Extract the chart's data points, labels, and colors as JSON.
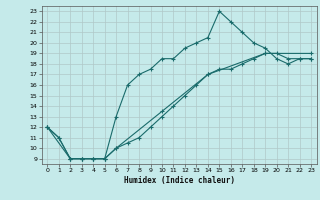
{
  "xlabel": "Humidex (Indice chaleur)",
  "xlim": [
    -0.5,
    23.5
  ],
  "ylim": [
    8.5,
    23.5
  ],
  "xticks": [
    0,
    1,
    2,
    3,
    4,
    5,
    6,
    7,
    8,
    9,
    10,
    11,
    12,
    13,
    14,
    15,
    16,
    17,
    18,
    19,
    20,
    21,
    22,
    23
  ],
  "yticks": [
    9,
    10,
    11,
    12,
    13,
    14,
    15,
    16,
    17,
    18,
    19,
    20,
    21,
    22,
    23
  ],
  "bg_color": "#c5eaea",
  "grid_color": "#b0c8c8",
  "line_color": "#1a6b6b",
  "line1_x": [
    0,
    1,
    2,
    3,
    4,
    5,
    6,
    7,
    8,
    9,
    10,
    11,
    12,
    13,
    14,
    15,
    16,
    17,
    18,
    19,
    20,
    21,
    22,
    23
  ],
  "line1_y": [
    12,
    11,
    9,
    9,
    9,
    9,
    13,
    16,
    17,
    17.5,
    18.5,
    18.5,
    19.5,
    20,
    20.5,
    23,
    22,
    21,
    20,
    19.5,
    18.5,
    18,
    18.5,
    18.5
  ],
  "line2_x": [
    0,
    1,
    2,
    3,
    4,
    5,
    6,
    7,
    8,
    9,
    10,
    11,
    12,
    13,
    14,
    15,
    16,
    17,
    18,
    19,
    20,
    21,
    22,
    23
  ],
  "line2_y": [
    12,
    11,
    9,
    9,
    9,
    9,
    10,
    10.5,
    11,
    12,
    13,
    14,
    15,
    16,
    17,
    17.5,
    17.5,
    18,
    18.5,
    19,
    19,
    18.5,
    18.5,
    18.5
  ],
  "line3_x": [
    0,
    2,
    3,
    4,
    5,
    6,
    10,
    14,
    19,
    23
  ],
  "line3_y": [
    12,
    9,
    9,
    9,
    9,
    10,
    13.5,
    17,
    19,
    19
  ]
}
